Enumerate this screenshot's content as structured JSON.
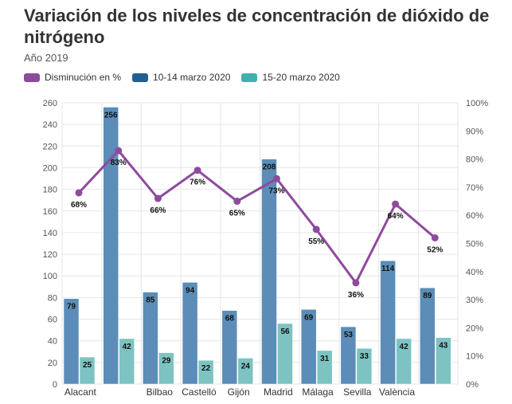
{
  "header": {
    "title": "Variación de los niveles de concentración de dióxido de nitrógeno",
    "subtitle": "Año 2019"
  },
  "colors": {
    "series_a": "#5b8db8",
    "series_b": "#7dc3c2",
    "line": "#8e4b9c",
    "grid": "#e6e6e6",
    "axis_text": "#555555"
  },
  "chart_data": {
    "type": "bar",
    "categories": [
      "Alacant",
      "",
      "Bilbao",
      "Castelló",
      "Gijón",
      "Madrid",
      "Málaga",
      "Sevilla",
      "València",
      ""
    ],
    "series": [
      {
        "name": "10-14 marzo 2020",
        "type": "bar",
        "axis": "left",
        "values": [
          79,
          256,
          85,
          94,
          68,
          208,
          69,
          53,
          114,
          89
        ]
      },
      {
        "name": "15-20 marzo 2020",
        "type": "bar",
        "axis": "left",
        "values": [
          25,
          42,
          29,
          22,
          24,
          56,
          31,
          33,
          42,
          43
        ]
      },
      {
        "name": "Disminución en %",
        "type": "line",
        "axis": "right",
        "values": [
          68,
          83,
          66,
          76,
          65,
          73,
          55,
          36,
          64,
          52
        ],
        "labels": [
          "68%",
          "83%",
          "66%",
          "76%",
          "65%",
          "73%",
          "55%",
          "36%",
          "64%",
          "52%"
        ]
      }
    ],
    "legend": [
      "Disminución en %",
      "10-14 marzo 2020",
      "15-20 marzo 2020"
    ],
    "legend_position": "top-left",
    "yleft": {
      "lim": [
        0,
        260
      ],
      "ticks": [
        "0",
        "20",
        "40",
        "60",
        "80",
        "100",
        "120",
        "140",
        "160",
        "180",
        "200",
        "220",
        "240",
        "260"
      ]
    },
    "yright": {
      "lim": [
        0,
        100
      ],
      "ticks": [
        "0%",
        "10%",
        "20%",
        "30%",
        "40%",
        "50%",
        "60%",
        "70%",
        "80%",
        "90%",
        "100%"
      ]
    },
    "grid": true
  }
}
